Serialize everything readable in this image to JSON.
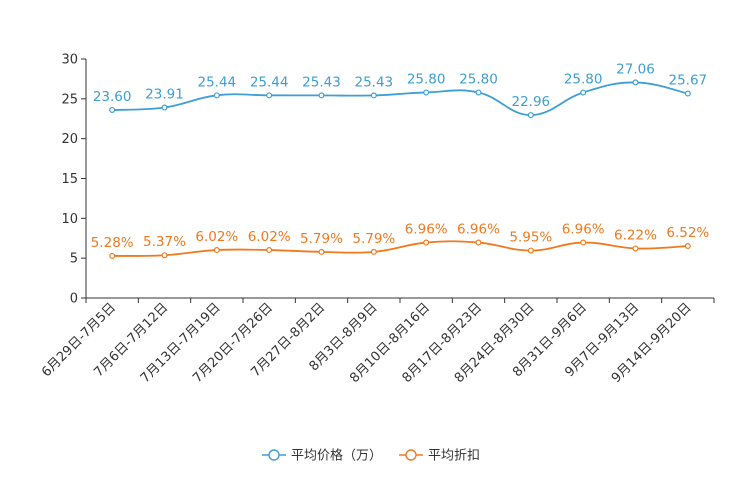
{
  "chart_data": {
    "type": "line",
    "categories": [
      "6月29日-7月5日",
      "7月6日-7月12日",
      "7月13日-7月19日",
      "7月20日-7月26日",
      "7月27日-8月2日",
      "8月3日-8月9日",
      "8月10日-8月16日",
      "8月17日-8月23日",
      "8月24日-8月30日",
      "8月31日-9月6日",
      "9月7日-9月13日",
      "9月14日-9月20日"
    ],
    "series": [
      {
        "name": "平均价格（万）",
        "color": "#3d9fd4",
        "values": [
          23.6,
          23.91,
          25.44,
          25.44,
          25.43,
          25.43,
          25.8,
          25.8,
          22.96,
          25.8,
          27.06,
          25.67
        ],
        "labels": [
          "23.60",
          "23.91",
          "25.44",
          "25.44",
          "25.43",
          "25.43",
          "25.80",
          "25.80",
          "22.96",
          "25.80",
          "27.06",
          "25.67"
        ]
      },
      {
        "name": "平均折扣",
        "color": "#f07a1e",
        "values": [
          5.28,
          5.37,
          6.02,
          6.02,
          5.79,
          5.79,
          6.96,
          6.96,
          5.95,
          6.96,
          6.22,
          6.52
        ],
        "labels": [
          "5.28%",
          "5.37%",
          "6.02%",
          "6.02%",
          "5.79%",
          "5.79%",
          "6.96%",
          "6.96%",
          "5.95%",
          "6.96%",
          "6.22%",
          "6.52%"
        ]
      }
    ],
    "y_ticks": [
      "0",
      "5",
      "10",
      "15",
      "20",
      "25",
      "30"
    ],
    "ylim": [
      0,
      30
    ],
    "title": "",
    "xlabel": "",
    "ylabel": "",
    "legend_position": "bottom-center"
  }
}
